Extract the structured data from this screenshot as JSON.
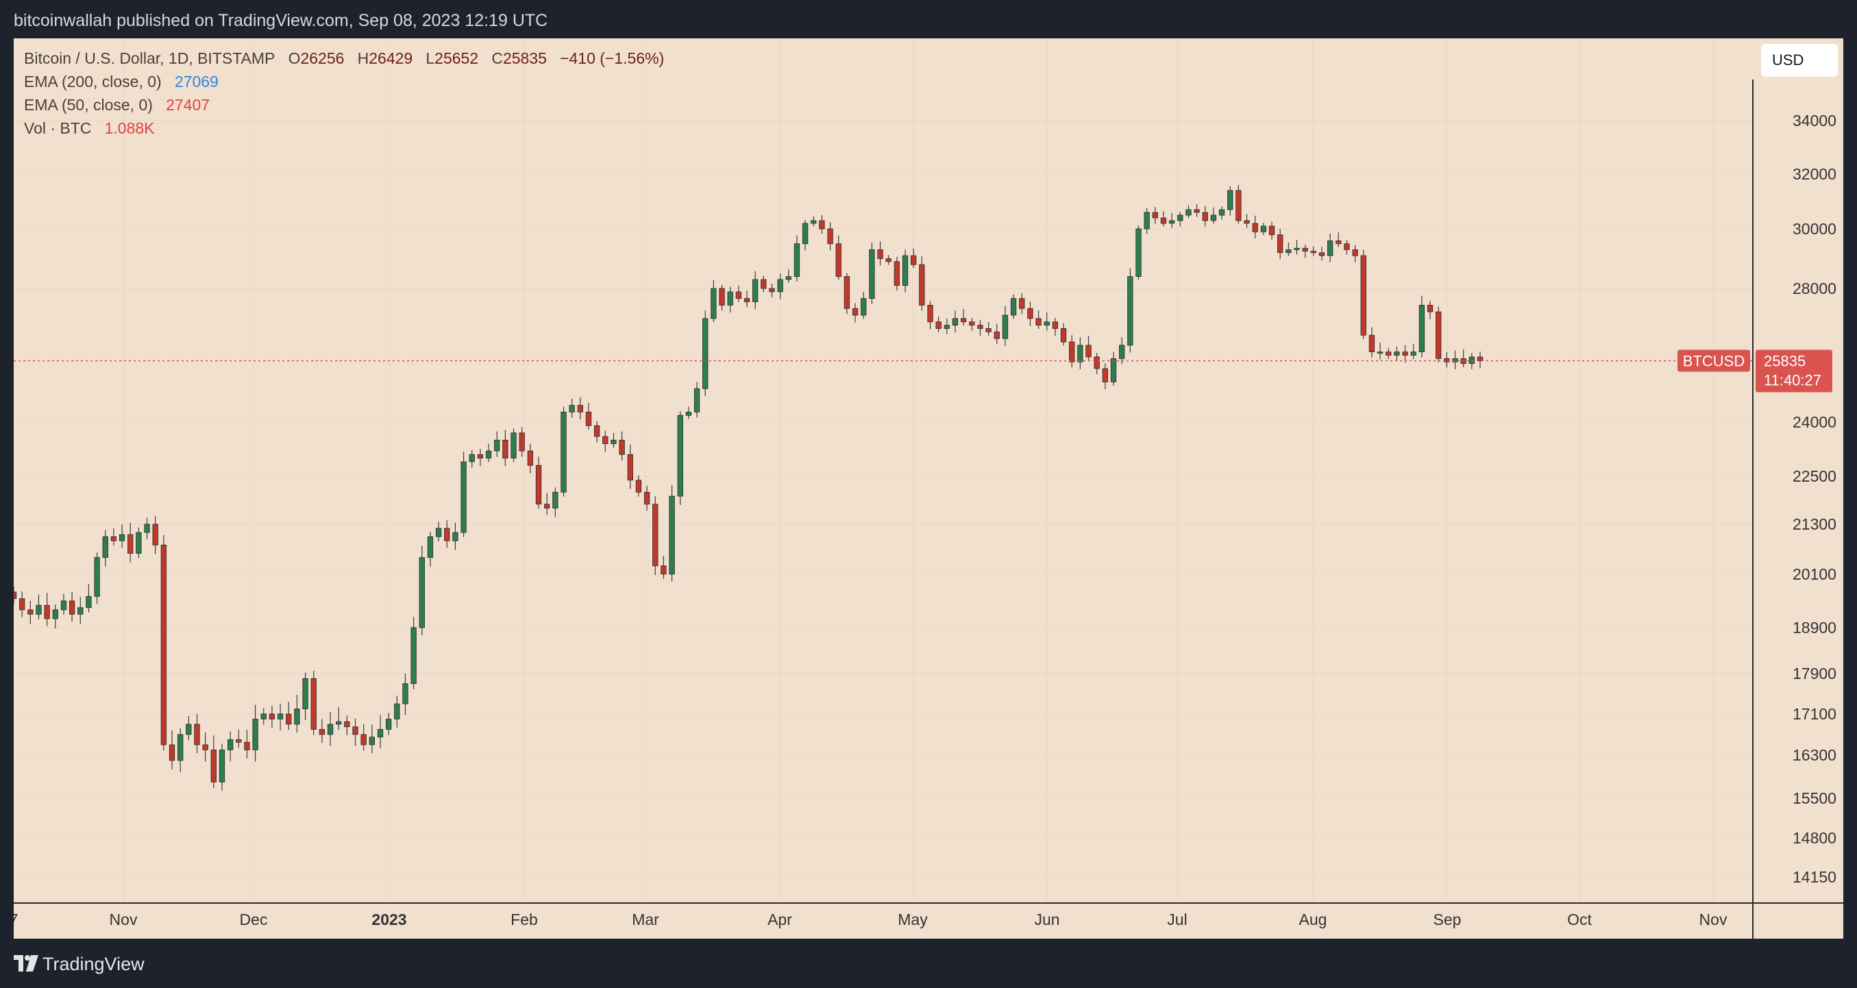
{
  "header": {
    "published": "bitcoinwallah published on TradingView.com, Sep 08, 2023 12:19 UTC"
  },
  "legend": {
    "symbol": "Bitcoin / U.S. Dollar, 1D, BITSTAMP",
    "o_label": "O",
    "o": "26256",
    "h_label": "H",
    "h": "26429",
    "l_label": "L",
    "l": "25652",
    "c_label": "C",
    "c": "25835",
    "change": "−410 (−1.56%)",
    "ema200_label": "EMA (200, close, 0)",
    "ema200": "27069",
    "ema50_label": "EMA (50, close, 0)",
    "ema50": "27407",
    "vol_label": "Vol · BTC",
    "vol": "1.088K"
  },
  "currency_button": "USD",
  "price_tag": {
    "symbol": "BTCUSD",
    "price": "25835",
    "countdown": "11:40:27"
  },
  "footer": {
    "brand": "TradingView"
  },
  "colors": {
    "up": "#2e7d4f",
    "down": "#c0392b",
    "bg": "#f2e0cf",
    "tag": "#d9534f"
  },
  "chart_data": {
    "type": "candlestick",
    "y_ticks": [
      "34000",
      "32000",
      "30000",
      "28000",
      "24000",
      "22500",
      "21300",
      "20100",
      "18900",
      "17900",
      "17100",
      "16300",
      "15500",
      "14800",
      "14150"
    ],
    "x_ticks": [
      "7",
      "Nov",
      "Dec",
      "2023",
      "Feb",
      "Mar",
      "Apr",
      "May",
      "Jun",
      "Jul",
      "Aug",
      "Sep",
      "Oct",
      "Nov"
    ],
    "last_price": 25835,
    "closes": [
      19550,
      19300,
      19200,
      19400,
      19100,
      19300,
      19500,
      19200,
      19350,
      19600,
      20500,
      21000,
      20900,
      21050,
      20600,
      21100,
      21300,
      20800,
      16500,
      16200,
      16700,
      16900,
      16500,
      16400,
      15800,
      16400,
      16600,
      16550,
      16400,
      17000,
      17100,
      17000,
      17100,
      16900,
      17200,
      17800,
      16800,
      16700,
      16900,
      16950,
      16850,
      16700,
      16500,
      16650,
      16800,
      17000,
      17300,
      17700,
      18900,
      20500,
      21000,
      21200,
      20900,
      21100,
      22900,
      23100,
      23000,
      23200,
      23500,
      23000,
      23700,
      23200,
      22800,
      21800,
      21700,
      22100,
      24300,
      24500,
      24300,
      23900,
      23600,
      23400,
      23500,
      23100,
      22400,
      22100,
      21800,
      20300,
      20100,
      22000,
      24200,
      24300,
      25000,
      27100,
      28000,
      27500,
      27900,
      27700,
      27600,
      28300,
      28000,
      27900,
      28300,
      28400,
      29500,
      30200,
      30300,
      30000,
      29500,
      28400,
      27400,
      27200,
      27700,
      29300,
      29000,
      28900,
      28100,
      29100,
      28800,
      27500,
      27000,
      26800,
      26900,
      27100,
      27000,
      26900,
      26800,
      26700,
      26500,
      27200,
      27700,
      27400,
      27100,
      26900,
      27000,
      26800,
      26400,
      25800,
      26300,
      25950,
      25600,
      25200,
      25900,
      26300,
      28400,
      30000,
      30600,
      30400,
      30200,
      30300,
      30500,
      30700,
      30600,
      30300,
      30500,
      30700,
      31400,
      30300,
      30200,
      29900,
      30100,
      29800,
      29200,
      29300,
      29350,
      29250,
      29200,
      29100,
      29600,
      29500,
      29300,
      29100,
      26600,
      26100,
      26100,
      26000,
      26100,
      26000,
      26100,
      27500,
      27300,
      25900,
      25800,
      25900,
      25750,
      25950,
      25835
    ]
  }
}
